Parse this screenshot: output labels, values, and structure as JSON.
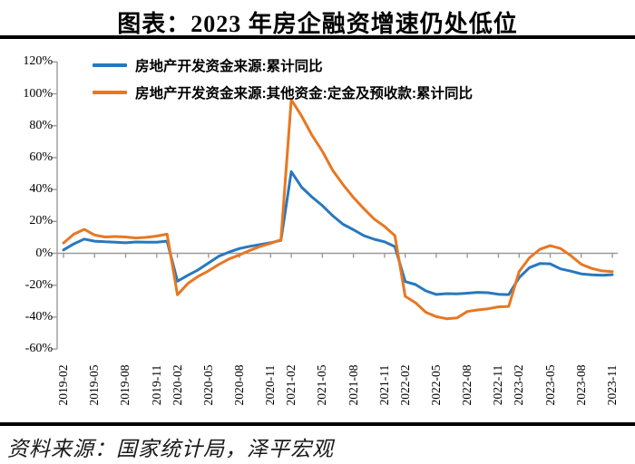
{
  "header": {
    "title": "图表：2023 年房企融资增速仍处低位"
  },
  "footer": {
    "source": "资料来源：国家统计局，泽平宏观"
  },
  "chart_data": {
    "type": "line",
    "title": "图表：2023 年房企融资增速仍处低位",
    "xlabel": "",
    "ylabel": "",
    "ylim": [
      -60,
      120
    ],
    "ytick_step": 20,
    "grid": false,
    "legend_position": "top-left",
    "axis_color": "#9a9a9a",
    "ytick_labels": [
      "120%",
      "100%",
      "80%",
      "60%",
      "40%",
      "20%",
      "0%",
      "-20%",
      "-40%",
      "-60%"
    ],
    "xtick_labels": [
      "2019-02",
      "2019-05",
      "2019-08",
      "2019-11",
      "2020-02",
      "2020-05",
      "2020-08",
      "2020-11",
      "2021-02",
      "2021-05",
      "2021-08",
      "2021-11",
      "2022-02",
      "2022-05",
      "2022-08",
      "2022-11",
      "2023-02",
      "2023-05",
      "2023-08",
      "2023-11"
    ],
    "xtick_indices": [
      0,
      3,
      6,
      9,
      11,
      14,
      17,
      20,
      22,
      25,
      28,
      31,
      33,
      36,
      39,
      42,
      44,
      47,
      50,
      53
    ],
    "x": [
      "2019-02",
      "2019-03",
      "2019-04",
      "2019-05",
      "2019-06",
      "2019-07",
      "2019-08",
      "2019-09",
      "2019-10",
      "2019-11",
      "2019-12",
      "2020-02",
      "2020-03",
      "2020-04",
      "2020-05",
      "2020-06",
      "2020-07",
      "2020-08",
      "2020-09",
      "2020-10",
      "2020-11",
      "2020-12",
      "2021-02",
      "2021-03",
      "2021-04",
      "2021-05",
      "2021-06",
      "2021-07",
      "2021-08",
      "2021-09",
      "2021-10",
      "2021-11",
      "2021-12",
      "2022-02",
      "2022-03",
      "2022-04",
      "2022-05",
      "2022-06",
      "2022-07",
      "2022-08",
      "2022-09",
      "2022-10",
      "2022-11",
      "2022-12",
      "2023-02",
      "2023-03",
      "2023-04",
      "2023-05",
      "2023-06",
      "2023-07",
      "2023-08",
      "2023-09",
      "2023-10",
      "2023-11"
    ],
    "series": [
      {
        "name": "房地产开发资金来源:累计同比",
        "color": "#2878be",
        "values": [
          2.1,
          5.9,
          8.9,
          7.6,
          7.2,
          7.0,
          6.6,
          7.1,
          7.0,
          7.0,
          7.6,
          -17.5,
          -13.8,
          -10.4,
          -6.1,
          -1.9,
          0.8,
          3.0,
          4.4,
          5.5,
          6.6,
          8.1,
          51.2,
          41.4,
          35.2,
          29.9,
          23.5,
          18.2,
          14.8,
          11.1,
          8.8,
          7.2,
          4.2,
          -17.7,
          -19.6,
          -23.6,
          -25.8,
          -25.3,
          -25.4,
          -25.0,
          -24.5,
          -24.7,
          -25.7,
          -25.9,
          -15.2,
          -9.0,
          -6.4,
          -6.6,
          -9.8,
          -11.2,
          -12.9,
          -13.5,
          -13.8,
          -13.4
        ]
      },
      {
        "name": "房地产开发资金来源:其他资金:定金及预收款:累计同比",
        "color": "#e87722",
        "values": [
          6.5,
          12.0,
          15.0,
          11.5,
          10.2,
          10.5,
          10.2,
          9.6,
          10.0,
          10.8,
          12.0,
          -26.0,
          -19.0,
          -14.5,
          -11.0,
          -7.0,
          -3.5,
          -1.0,
          1.8,
          4.3,
          6.2,
          8.5,
          96.3,
          86.0,
          74.0,
          63.9,
          52.0,
          43.0,
          35.0,
          28.0,
          21.5,
          16.8,
          11.1,
          -27.0,
          -31.0,
          -37.0,
          -39.7,
          -41.0,
          -40.5,
          -36.5,
          -35.5,
          -34.8,
          -33.6,
          -33.3,
          -11.4,
          -2.8,
          2.5,
          4.8,
          3.0,
          -1.5,
          -6.9,
          -9.5,
          -11.0,
          -11.5
        ]
      }
    ]
  }
}
